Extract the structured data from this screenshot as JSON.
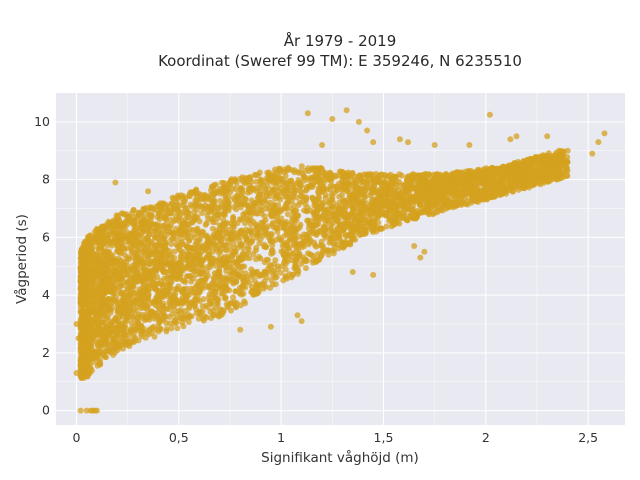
{
  "chart_data": {
    "type": "scatter",
    "title_line1": "År 1979 - 2019",
    "title_line2": "Koordinat (Sweref 99 TM): E 359246, N 6235510",
    "xlabel": "Signifikant våghöjd (m)",
    "ylabel": "Vågperiod (s)",
    "xlim": [
      -0.1,
      2.68
    ],
    "ylim": [
      -0.5,
      11
    ],
    "x_ticks": [
      0,
      0.5,
      1,
      1.5,
      2,
      2.5
    ],
    "x_tick_labels": [
      "0",
      "0,5",
      "1",
      "1,5",
      "2",
      "2,5"
    ],
    "y_ticks": [
      0,
      2,
      4,
      6,
      8,
      10
    ],
    "y_tick_labels": [
      "0",
      "2",
      "4",
      "6",
      "8",
      "10"
    ],
    "grid": true,
    "legend": "none",
    "marker_color": "#d4a21f",
    "marker_opacity": 0.75,
    "envelope": {
      "description_values": "dense point cloud bounded by lower and upper curves",
      "x": [
        0.02,
        0.05,
        0.1,
        0.15,
        0.2,
        0.3,
        0.4,
        0.5,
        0.6,
        0.7,
        0.8,
        0.9,
        1.0,
        1.1,
        1.2,
        1.3,
        1.4,
        1.5,
        1.6,
        1.7,
        1.8,
        1.9,
        2.0,
        2.1,
        2.2,
        2.3,
        2.4
      ],
      "lower": [
        1.1,
        1.15,
        1.5,
        1.8,
        2.0,
        2.35,
        2.6,
        2.8,
        3.0,
        3.2,
        3.6,
        4.0,
        4.4,
        4.8,
        5.2,
        5.6,
        6.0,
        6.3,
        6.5,
        6.7,
        6.9,
        7.1,
        7.3,
        7.5,
        7.7,
        7.9,
        8.1
      ],
      "upper": [
        5.5,
        6.0,
        6.3,
        6.5,
        6.8,
        7.0,
        7.2,
        7.5,
        7.7,
        7.9,
        8.1,
        8.3,
        8.4,
        8.5,
        8.4,
        8.3,
        8.2,
        8.2,
        8.2,
        8.2,
        8.2,
        8.3,
        8.4,
        8.5,
        8.7,
        8.9,
        9.1
      ]
    },
    "outliers": [
      [
        0.02,
        0.0
      ],
      [
        0.05,
        0.0
      ],
      [
        0.07,
        0.0
      ],
      [
        0.08,
        0.0
      ],
      [
        0.09,
        0.0
      ],
      [
        0.1,
        0.0
      ],
      [
        0.19,
        7.9
      ],
      [
        0.35,
        7.6
      ],
      [
        0.5,
        7.4
      ],
      [
        1.13,
        10.3
      ],
      [
        1.25,
        10.1
      ],
      [
        1.32,
        10.4
      ],
      [
        1.38,
        10.0
      ],
      [
        1.42,
        9.7
      ],
      [
        1.2,
        9.2
      ],
      [
        1.45,
        9.3
      ],
      [
        2.02,
        10.25
      ],
      [
        2.12,
        9.4
      ],
      [
        2.15,
        9.5
      ],
      [
        2.3,
        9.5
      ],
      [
        2.55,
        9.3
      ],
      [
        2.58,
        9.6
      ],
      [
        2.52,
        8.9
      ],
      [
        1.58,
        9.4
      ],
      [
        1.62,
        9.3
      ],
      [
        1.75,
        9.2
      ],
      [
        1.92,
        9.2
      ],
      [
        1.45,
        4.7
      ],
      [
        1.35,
        4.8
      ],
      [
        1.65,
        5.7
      ],
      [
        1.68,
        5.3
      ],
      [
        1.7,
        5.5
      ],
      [
        0.8,
        2.8
      ],
      [
        0.95,
        2.9
      ],
      [
        1.1,
        3.1
      ],
      [
        1.08,
        3.3
      ],
      [
        0.0,
        3.0
      ],
      [
        0.01,
        2.5
      ],
      [
        0.0,
        1.3
      ],
      [
        0.02,
        1.4
      ]
    ]
  }
}
